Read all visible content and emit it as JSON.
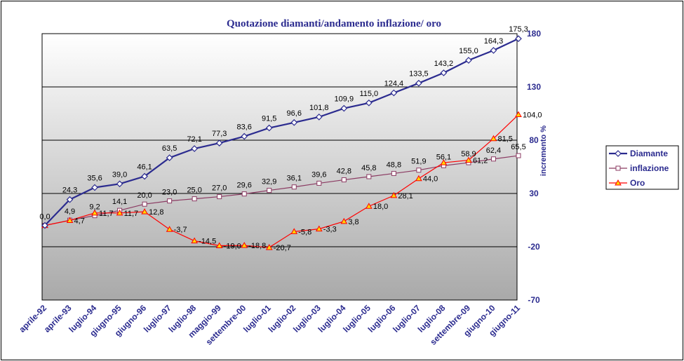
{
  "chart_data": {
    "type": "line",
    "title": "Quotazione diamanti/andamento inflazione/ oro",
    "ylabel": "incremento %",
    "ylim": [
      -70,
      180
    ],
    "yticks": [
      -70,
      -20,
      30,
      80,
      130,
      180
    ],
    "grid": true,
    "legend_position": "right",
    "categories": [
      "aprile-92",
      "aprile-93",
      "luglio-94",
      "giugno-95",
      "giugno-96",
      "luglio-97",
      "luglio-98",
      "maggio-99",
      "settembre-00",
      "luglio-01",
      "luglio-02",
      "luglio-03",
      "luglio-04",
      "luglio-05",
      "luglio-06",
      "luglio-07",
      "luglio-08",
      "settembre-09",
      "giugno-10",
      "giugno-11"
    ],
    "series": [
      {
        "name": "Diamante",
        "color": "#2b2b8f",
        "marker": "diamond",
        "values": [
          0,
          24.3,
          35.6,
          39.0,
          46.1,
          63.5,
          72.1,
          77.3,
          83.6,
          91.5,
          96.6,
          101.8,
          109.9,
          115.0,
          124.4,
          133.5,
          143.2,
          155.0,
          164.3,
          175.3
        ],
        "labels": [
          "",
          "24,3",
          "35,6",
          "39,0",
          "46,1",
          "63,5",
          "72,1",
          "77,3",
          "83,6",
          "91,5",
          "96,6",
          "101,8",
          "109,9",
          "115,0",
          "124,4",
          "133,5",
          "143,2",
          "155,0",
          "164,3",
          "175,3"
        ]
      },
      {
        "name": "inflazione",
        "color": "#8b3a62",
        "marker": "square",
        "values": [
          0,
          4.9,
          9.2,
          14.1,
          20.0,
          23.0,
          25.0,
          27.0,
          29.6,
          32.9,
          36.1,
          39.6,
          42.8,
          45.8,
          48.8,
          51.9,
          56.1,
          58.9,
          62.4,
          65.5
        ],
        "labels": [
          "0,0",
          "4,9",
          "9,2",
          "14,1",
          "20,0",
          "23,0",
          "25,0",
          "27,0",
          "29,6",
          "32,9",
          "36,1",
          "39,6",
          "42,8",
          "45,8",
          "48,8",
          "51,9",
          "56,1",
          "58,9",
          "62,4",
          "65,5"
        ]
      },
      {
        "name": "Oro",
        "color": "#ff0000",
        "marker": "triangle",
        "values": [
          0,
          4.7,
          11.7,
          11.7,
          12.8,
          -3.7,
          -14.5,
          -19.0,
          -18.8,
          -20.7,
          -5.8,
          -3.3,
          3.8,
          18.0,
          28.1,
          44.0,
          58.9,
          61.2,
          81.5,
          104.0
        ],
        "labels": [
          "",
          "4,7",
          "11,7",
          "11,7",
          "12,8",
          "-3,7",
          "-14,5",
          "-19,0",
          "-18,8",
          "-20,7",
          "-5,8",
          "-3,3",
          "3,8",
          "18,0",
          "28,1",
          "44,0",
          "",
          "61,2",
          "81,5",
          "104,0"
        ]
      }
    ]
  },
  "colors": {
    "axis_text": "#2b2b8f",
    "plot_top": "#ffffff",
    "plot_bottom": "#a9a9a9"
  }
}
